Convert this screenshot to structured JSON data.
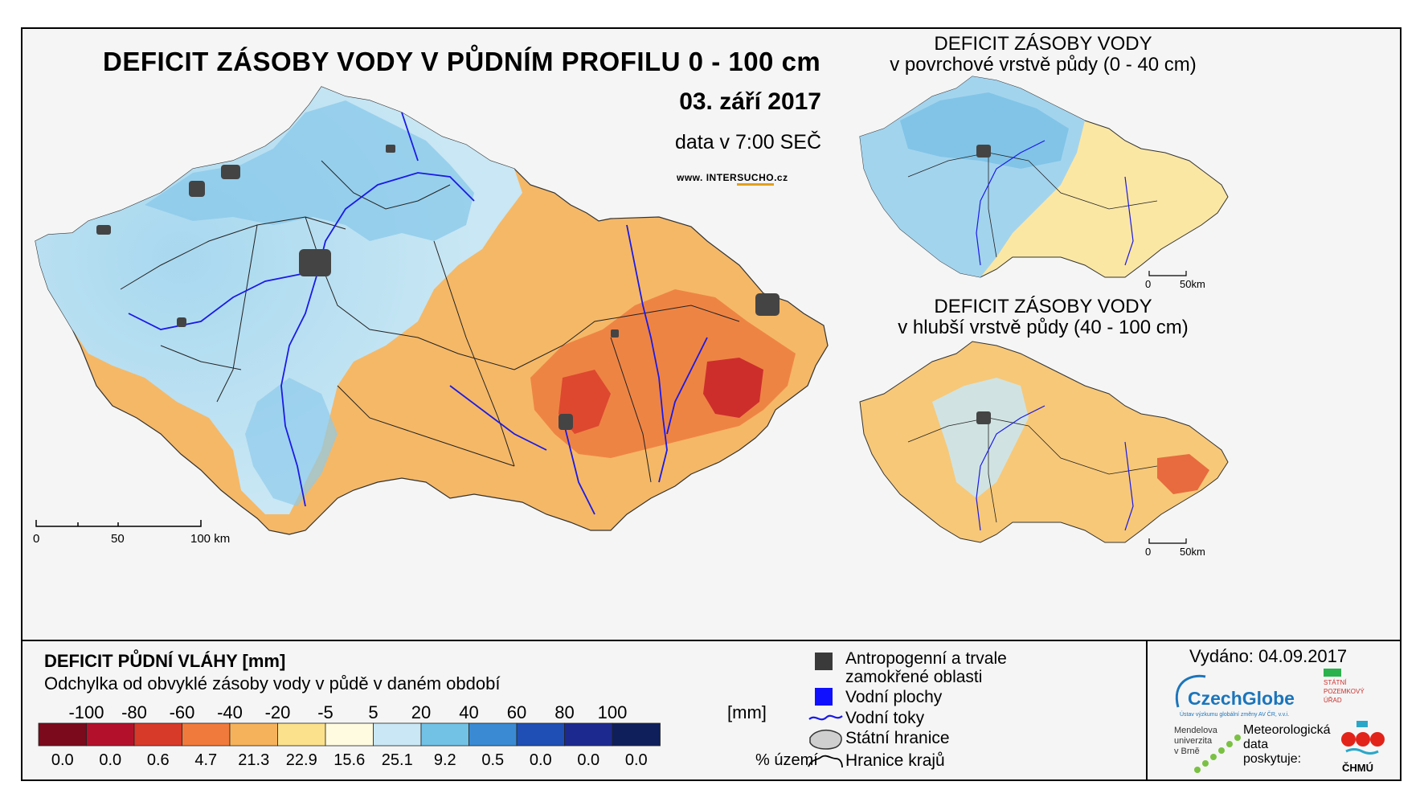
{
  "main_title": "DEFICIT ZÁSOBY VODY V PŮDNÍM PROFILU 0 - 100 cm",
  "date": "03. září 2017",
  "data_time": "data v 7:00 SEČ",
  "website": {
    "prefix": "www. INTER",
    "highlight": "SUCHO",
    "suffix": ".cz"
  },
  "main_scale": {
    "labels": [
      "0",
      "50",
      "100 km"
    ]
  },
  "inset_top": {
    "title_line1": "DEFICIT ZÁSOBY VODY",
    "title_line2": "v povrchové vrstvě půdy (0 - 40 cm)",
    "scale_labels": [
      "0",
      "50km"
    ]
  },
  "inset_bottom": {
    "title_line1": "DEFICIT ZÁSOBY VODY",
    "title_line2": "v hlubší vrstvě půdy (40 - 100 cm)",
    "scale_labels": [
      "0",
      "50km"
    ]
  },
  "legend": {
    "title": "DEFICIT PŮDNÍ VLÁHY [mm]",
    "subtitle": "Odchylka od obvyklé zásoby vody v půdě v daném období",
    "ticks": [
      "-100",
      "-80",
      "-60",
      "-40",
      "-20",
      "-5",
      "5",
      "20",
      "40",
      "60",
      "80",
      "100"
    ],
    "unit": "[mm]",
    "colors": [
      "#7a0a1c",
      "#b3112b",
      "#d83a2a",
      "#f07a3c",
      "#f6b25a",
      "#fbe18c",
      "#fffbe0",
      "#c9e7f4",
      "#72c2e6",
      "#3a8ad3",
      "#1f4fb5",
      "#1c2a8f",
      "#0e1f5c"
    ],
    "percentages": [
      "0.0",
      "0.0",
      "0.6",
      "4.7",
      "21.3",
      "22.9",
      "15.6",
      "25.1",
      "9.2",
      "0.5",
      "0.0",
      "0.0",
      "0.0"
    ],
    "pct_unit": "% území"
  },
  "symbols": {
    "anthropogenic": "Antropogenní a trvale",
    "anthropogenic2": "zamokřené oblasti",
    "water_bodies": "Vodní plochy",
    "rivers": "Vodní toky",
    "state_border": "Státní hranice",
    "region_border": "Hranice krajů"
  },
  "issued": "Vydáno: 04.09.2017",
  "logos": {
    "czechglobe": "CzechGlobe",
    "czechglobe_sub": "Ústav výzkumu globální změny AV ČR, v.v.i.",
    "spu_line1": "STÁTNÍ",
    "spu_line2": "POZEMKOVÝ",
    "spu_line3": "ÚŘAD",
    "mendel_line1": "Mendelova",
    "mendel_line2": "univerzita",
    "mendel_line3": "v Brně",
    "met_line1": "Meteorologická",
    "met_line2": "data",
    "met_line3": "poskytuje:",
    "chmu": "ČHMÚ"
  }
}
